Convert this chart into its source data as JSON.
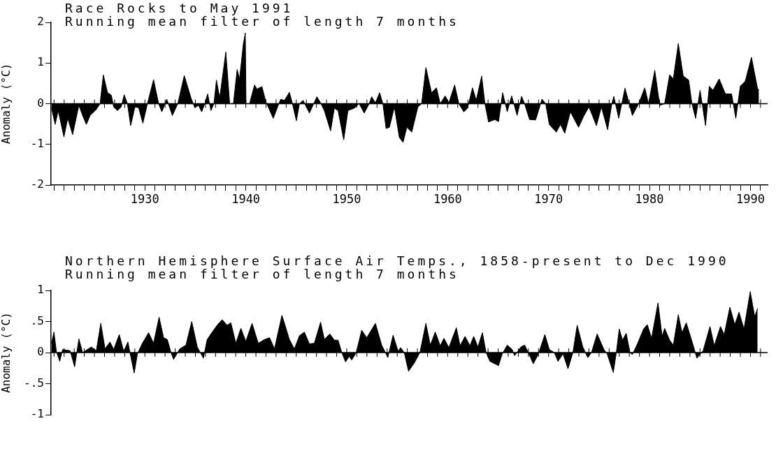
{
  "chart_data": [
    {
      "type": "area",
      "title": "Race Rocks to May 1991",
      "subtitle": "Running mean filter of length 7 months",
      "ylabel": "Anomaly (°C)",
      "color": "#000000",
      "grid": false,
      "legend": false,
      "x": [
        1920.74,
        1921.11,
        1921.41,
        1921.98,
        1922.35,
        1922.84,
        1923.46,
        1923.83,
        1924.2,
        1924.57,
        1925.19,
        1925.56,
        1925.88,
        1926.3,
        1926.67,
        1926.91,
        1927.28,
        1927.65,
        1927.95,
        1928.27,
        1928.59,
        1929.01,
        1929.38,
        1929.8,
        1930.25,
        1930.86,
        1931.36,
        1931.68,
        1932.17,
        1932.72,
        1933.26,
        1933.9,
        1934.57,
        1934.94,
        1935.31,
        1935.63,
        1935.93,
        1936.22,
        1936.54,
        1936.84,
        1937.09,
        1937.41,
        1938.02,
        1938.4,
        1938.77,
        1939.14,
        1939.38,
        1939.75,
        1939.95,
        1940.02,
        1940.37,
        1940.86,
        1941.11,
        1941.6,
        1941.98,
        1942.72,
        1943.21,
        1943.46,
        1943.83,
        1944.32,
        1944.62,
        1945.01,
        1945.31,
        1945.68,
        1946.3,
        1947.04,
        1947.41,
        1947.78,
        1948.4,
        1948.77,
        1949.14,
        1949.7,
        1950.12,
        1950.74,
        1951.23,
        1951.73,
        1952.22,
        1952.47,
        1952.84,
        1953.26,
        1953.58,
        1953.9,
        1954.23,
        1954.72,
        1955.21,
        1955.58,
        1955.95,
        1956.44,
        1957.05,
        1957.42,
        1957.84,
        1958.4,
        1958.89,
        1959.26,
        1959.75,
        1960.12,
        1960.69,
        1961.11,
        1961.6,
        1961.97,
        1962.46,
        1962.83,
        1963.37,
        1963.69,
        1964.05,
        1964.67,
        1965.04,
        1965.45,
        1965.9,
        1966.34,
        1966.88,
        1967.32,
        1967.62,
        1968.11,
        1968.72,
        1969.34,
        1969.71,
        1970.07,
        1970.76,
        1971.18,
        1971.6,
        1972.16,
        1972.97,
        1973.51,
        1974.0,
        1974.74,
        1975.23,
        1975.85,
        1976.27,
        1976.46,
        1976.95,
        1977.57,
        1978.3,
        1978.92,
        1979.53,
        1979.9,
        1980.52,
        1981.01,
        1981.5,
        1981.99,
        1982.36,
        1982.85,
        1983.34,
        1983.88,
        1984.2,
        1984.57,
        1985.01,
        1985.55,
        1985.92,
        1986.29,
        1986.9,
        1987.52,
        1988.13,
        1988.55,
        1988.99,
        1989.48,
        1990.1,
        1990.71,
        1990.84
      ],
      "values": [
        -0.1,
        -0.51,
        -0.17,
        -0.82,
        -0.36,
        -0.76,
        -0.04,
        -0.29,
        -0.51,
        -0.29,
        -0.14,
        0,
        0.71,
        0.27,
        0.21,
        -0.08,
        -0.17,
        -0.08,
        0.22,
        0,
        -0.54,
        -0.08,
        -0.1,
        -0.48,
        0,
        0.59,
        0,
        -0.2,
        0.11,
        -0.29,
        0,
        0.69,
        0.14,
        -0.1,
        -0.04,
        -0.2,
        0,
        0.24,
        -0.17,
        0,
        0.58,
        0.14,
        1.27,
        0,
        0,
        0.84,
        0.61,
        1.46,
        1.74,
        0,
        0,
        0.46,
        0.36,
        0.42,
        0.05,
        -0.36,
        -0.04,
        0.11,
        0.08,
        0.28,
        0,
        -0.42,
        0,
        0.08,
        -0.23,
        0.17,
        0.02,
        -0.17,
        -0.67,
        -0.11,
        -0.17,
        -0.89,
        -0.17,
        -0.11,
        0,
        -0.23,
        0,
        0.17,
        0.02,
        0.27,
        0,
        -0.61,
        -0.58,
        -0.08,
        -0.83,
        -0.95,
        -0.58,
        -0.7,
        -0.08,
        0,
        0.89,
        0.27,
        0.39,
        0,
        0.19,
        0.02,
        0.46,
        0,
        -0.2,
        -0.11,
        0.39,
        0.08,
        0.68,
        0,
        -0.45,
        -0.39,
        -0.44,
        0.27,
        -0.2,
        0.19,
        -0.29,
        0.18,
        0,
        -0.39,
        -0.4,
        0.11,
        0,
        -0.51,
        -0.7,
        -0.51,
        -0.73,
        -0.2,
        -0.58,
        -0.29,
        -0.08,
        -0.54,
        -0.08,
        -0.64,
        0,
        0.18,
        -0.36,
        0.38,
        -0.29,
        0,
        0.39,
        0,
        0.82,
        -0.04,
        0,
        0.71,
        0.61,
        1.48,
        0.68,
        0.58,
        0,
        -0.36,
        0.33,
        -0.54,
        0.43,
        0.33,
        0.61,
        0.24,
        0.24,
        -0.36,
        0.43,
        0.55,
        1.14,
        0.36,
        0.35
      ],
      "xlim": [
        1920.7,
        1991.7
      ],
      "xticks": [
        {
          "value": 1921,
          "label": null
        },
        {
          "value": 1922,
          "label": null
        },
        {
          "value": 1923,
          "label": null
        },
        {
          "value": 1924,
          "label": null
        },
        {
          "value": 1925,
          "label": null
        },
        {
          "value": 1926,
          "label": null
        },
        {
          "value": 1927,
          "label": null
        },
        {
          "value": 1928,
          "label": null
        },
        {
          "value": 1929,
          "label": null
        },
        1930,
        {
          "value": 1931,
          "label": null
        },
        {
          "value": 1932,
          "label": null
        },
        {
          "value": 1933,
          "label": null
        },
        {
          "value": 1934,
          "label": null
        },
        {
          "value": 1935,
          "label": null
        },
        {
          "value": 1936,
          "label": null
        },
        {
          "value": 1937,
          "label": null
        },
        {
          "value": 1938,
          "label": null
        },
        {
          "value": 1939,
          "label": null
        },
        1940,
        {
          "value": 1941,
          "label": null
        },
        {
          "value": 1942,
          "label": null
        },
        {
          "value": 1943,
          "label": null
        },
        {
          "value": 1944,
          "label": null
        },
        {
          "value": 1945,
          "label": null
        },
        {
          "value": 1946,
          "label": null
        },
        {
          "value": 1947,
          "label": null
        },
        {
          "value": 1948,
          "label": null
        },
        {
          "value": 1949,
          "label": null
        },
        1950,
        {
          "value": 1951,
          "label": null
        },
        {
          "value": 1952,
          "label": null
        },
        {
          "value": 1953,
          "label": null
        },
        {
          "value": 1954,
          "label": null
        },
        {
          "value": 1955,
          "label": null
        },
        {
          "value": 1956,
          "label": null
        },
        {
          "value": 1957,
          "label": null
        },
        {
          "value": 1958,
          "label": null
        },
        {
          "value": 1959,
          "label": null
        },
        1960,
        {
          "value": 1961,
          "label": null
        },
        {
          "value": 1962,
          "label": null
        },
        {
          "value": 1963,
          "label": null
        },
        {
          "value": 1964,
          "label": null
        },
        {
          "value": 1965,
          "label": null
        },
        {
          "value": 1966,
          "label": null
        },
        {
          "value": 1967,
          "label": null
        },
        {
          "value": 1968,
          "label": null
        },
        {
          "value": 1969,
          "label": null
        },
        1970,
        {
          "value": 1971,
          "label": null
        },
        {
          "value": 1972,
          "label": null
        },
        {
          "value": 1973,
          "label": null
        },
        {
          "value": 1974,
          "label": null
        },
        {
          "value": 1975,
          "label": null
        },
        {
          "value": 1976,
          "label": null
        },
        {
          "value": 1977,
          "label": null
        },
        {
          "value": 1978,
          "label": null
        },
        {
          "value": 1979,
          "label": null
        },
        1980,
        {
          "value": 1981,
          "label": null
        },
        {
          "value": 1982,
          "label": null
        },
        {
          "value": 1983,
          "label": null
        },
        {
          "value": 1984,
          "label": null
        },
        {
          "value": 1985,
          "label": null
        },
        {
          "value": 1986,
          "label": null
        },
        {
          "value": 1987,
          "label": null
        },
        {
          "value": 1988,
          "label": null
        },
        {
          "value": 1989,
          "label": null
        },
        1990,
        {
          "value": 1991,
          "label": null
        }
      ],
      "ylim": [
        -2,
        2
      ],
      "yticks": [
        -2,
        -1,
        0,
        1,
        2
      ],
      "ref_lines": [
        {
          "axis": "y",
          "value": 0,
          "color": "#000000"
        }
      ]
    },
    {
      "type": "area",
      "title": "Northern Hemisphere Surface Air Temps., 1858-present to Dec 1990",
      "subtitle": "Running mean filter of length 7 months",
      "ylabel": "Anomaly (°C)",
      "color": "#000000",
      "grid": false,
      "legend": false,
      "tick_labels": "y",
      "x": [
        1920.74,
        1920.99,
        1921.23,
        1921.56,
        1921.85,
        1922.59,
        1923.04,
        1923.46,
        1923.83,
        1924.69,
        1925.19,
        1925.63,
        1926.05,
        1926.54,
        1926.91,
        1927.46,
        1927.9,
        1928.32,
        1928.52,
        1928.94,
        1929.26,
        1929.75,
        1930.37,
        1930.86,
        1931.41,
        1931.85,
        1932.22,
        1932.59,
        1932.84,
        1933.46,
        1934.07,
        1934.64,
        1935.19,
        1935.8,
        1936.17,
        1936.67,
        1937.16,
        1937.65,
        1938.15,
        1938.52,
        1939.01,
        1939.51,
        1940.0,
        1940.62,
        1941.23,
        1941.85,
        1942.35,
        1942.84,
        1943.58,
        1944.32,
        1944.81,
        1945.31,
        1945.8,
        1946.3,
        1946.79,
        1947.41,
        1947.78,
        1948.32,
        1948.77,
        1949.14,
        1949.51,
        1949.88,
        1950.25,
        1950.49,
        1950.94,
        1951.48,
        1951.98,
        1952.84,
        1953.46,
        1953.83,
        1954.07,
        1954.59,
        1955.09,
        1955.33,
        1955.7,
        1956.12,
        1956.68,
        1957.25,
        1957.84,
        1958.28,
        1958.77,
        1959.26,
        1959.63,
        1960.12,
        1960.86,
        1961.23,
        1961.72,
        1962.21,
        1962.58,
        1963.0,
        1963.44,
        1963.81,
        1964.18,
        1965.04,
        1965.41,
        1965.9,
        1966.39,
        1966.63,
        1967.25,
        1967.62,
        1967.99,
        1968.48,
        1968.97,
        1969.63,
        1970.07,
        1970.57,
        1970.93,
        1971.43,
        1971.92,
        1972.41,
        1972.83,
        1973.39,
        1973.88,
        1974.25,
        1974.81,
        1975.48,
        1975.8,
        1976.41,
        1976.71,
        1977.0,
        1977.32,
        1977.69,
        1978.06,
        1978.3,
        1978.8,
        1979.41,
        1979.78,
        1980.2,
        1980.84,
        1981.25,
        1981.5,
        1981.99,
        1982.36,
        1982.85,
        1983.22,
        1983.64,
        1984.32,
        1984.69,
        1985.31,
        1985.99,
        1986.41,
        1987.03,
        1987.4,
        1987.96,
        1988.45,
        1988.87,
        1989.36,
        1989.98,
        1990.42,
        1990.71
      ],
      "values": [
        0.15,
        0.33,
        0.02,
        -0.14,
        0.05,
        0.03,
        -0.23,
        0.22,
        0,
        0.09,
        0.03,
        0.47,
        0.06,
        0.17,
        0.05,
        0.29,
        0.02,
        0.17,
        0,
        -0.33,
        -0.02,
        0.15,
        0.32,
        0.15,
        0.57,
        0.24,
        0.21,
        0,
        -0.11,
        0.06,
        0.12,
        0.5,
        0.09,
        -0.09,
        0.21,
        0.33,
        0.44,
        0.53,
        0.44,
        0.48,
        0.15,
        0.39,
        0.18,
        0.47,
        0.15,
        0.21,
        0.24,
        0.06,
        0.6,
        0.21,
        0.06,
        0.27,
        0.33,
        0.14,
        0.15,
        0.49,
        0.21,
        0.3,
        0.2,
        0.2,
        0,
        -0.15,
        -0.06,
        -0.12,
        0,
        0.36,
        0.24,
        0.47,
        0.12,
        0,
        -0.08,
        0.28,
        0.02,
        0.08,
        0,
        -0.3,
        -0.17,
        0,
        0.47,
        0.12,
        0.33,
        0.11,
        0.23,
        0.08,
        0.4,
        0.11,
        0.26,
        0.11,
        0.26,
        0.09,
        0.32,
        0,
        -0.14,
        -0.21,
        -0.02,
        0.12,
        0.05,
        -0.05,
        0.09,
        0.12,
        0,
        -0.18,
        -0.03,
        0.29,
        0.05,
        0,
        -0.14,
        -0.02,
        -0.26,
        0,
        0.44,
        0.09,
        -0.08,
        0,
        0.3,
        0.05,
        -0.02,
        -0.32,
        0,
        0.38,
        0.2,
        0.31,
        0,
        -0.03,
        0.14,
        0.38,
        0.45,
        0.23,
        0.8,
        0.26,
        0.39,
        0.2,
        0.12,
        0.61,
        0.32,
        0.48,
        0.12,
        -0.09,
        0.03,
        0.42,
        0.11,
        0.42,
        0.29,
        0.73,
        0.45,
        0.65,
        0.38,
        0.98,
        0.58,
        0.71
      ],
      "xlim": [
        1920.7,
        1991.7
      ],
      "xticks": [
        1921,
        1922,
        1923,
        1924,
        1925,
        1926,
        1927,
        1928,
        1929,
        1930,
        1931,
        1932,
        1933,
        1934,
        1935,
        1936,
        1937,
        1938,
        1939,
        1940,
        1941,
        1942,
        1943,
        1944,
        1945,
        1946,
        1947,
        1948,
        1949,
        1950,
        1951,
        1952,
        1953,
        1954,
        1955,
        1956,
        1957,
        1958,
        1959,
        1960,
        1961,
        1962,
        1963,
        1964,
        1965,
        1966,
        1967,
        1968,
        1969,
        1970,
        1971,
        1972,
        1973,
        1974,
        1975,
        1976,
        1977,
        1978,
        1979,
        1980,
        1981,
        1982,
        1983,
        1984,
        1985,
        1986,
        1987,
        1988,
        1989,
        1990,
        1991
      ],
      "ylim": [
        -1,
        1
      ],
      "yticks": [
        -1,
        {
          "value": -0.5,
          "label": "-.5"
        },
        0,
        {
          "value": 0.5,
          "label": ".5"
        },
        1
      ],
      "ref_lines": [
        {
          "axis": "y",
          "value": 0,
          "color": "#000000"
        }
      ]
    }
  ]
}
